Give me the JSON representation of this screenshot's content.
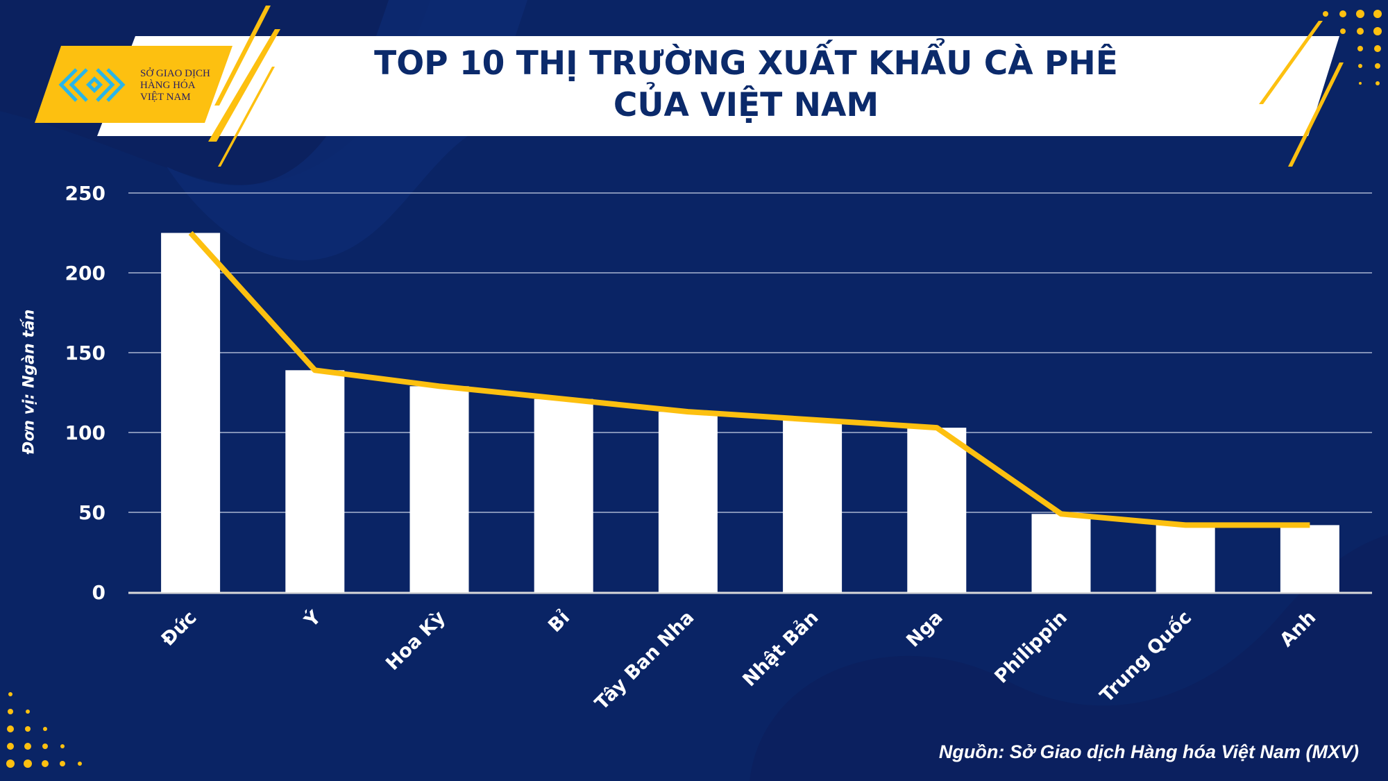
{
  "header": {
    "title_line1": "TOP 10 THỊ TRƯỜNG XUẤT KHẨU CÀ PHÊ",
    "title_line2": "CỦA VIỆT NAM",
    "logo_text": [
      "SỞ GIAO DỊCH",
      "HÀNG HÓA",
      "VIỆT NAM"
    ]
  },
  "source": "Nguồn: Sở Giao dịch Hàng hóa Việt Nam (MXV)",
  "colors": {
    "background": "#0a2465",
    "bar": "#ffffff",
    "line": "#fdc010",
    "accent": "#fdc010"
  },
  "chart_data": {
    "type": "bar",
    "title": "TOP 10 THỊ TRƯỜNG XUẤT KHẨU CÀ PHÊ CỦA VIỆT NAM",
    "xlabel": "",
    "ylabel": "Đơn vị: Ngàn tấn",
    "ylim": [
      0,
      250
    ],
    "yticks": [
      0,
      50,
      100,
      150,
      200,
      250
    ],
    "grid": true,
    "categories": [
      "Đức",
      "Ý",
      "Hoa Kỳ",
      "Bỉ",
      "Tây Ban Nha",
      "Nhật Bản",
      "Nga",
      "Philippin",
      "Trung Quốc",
      "Anh"
    ],
    "values": [
      225,
      139,
      129,
      121,
      113,
      108,
      103,
      49,
      42,
      42
    ],
    "overlay_line": {
      "type": "line",
      "values": [
        225,
        139,
        129,
        121,
        113,
        108,
        103,
        49,
        42,
        42
      ]
    }
  }
}
